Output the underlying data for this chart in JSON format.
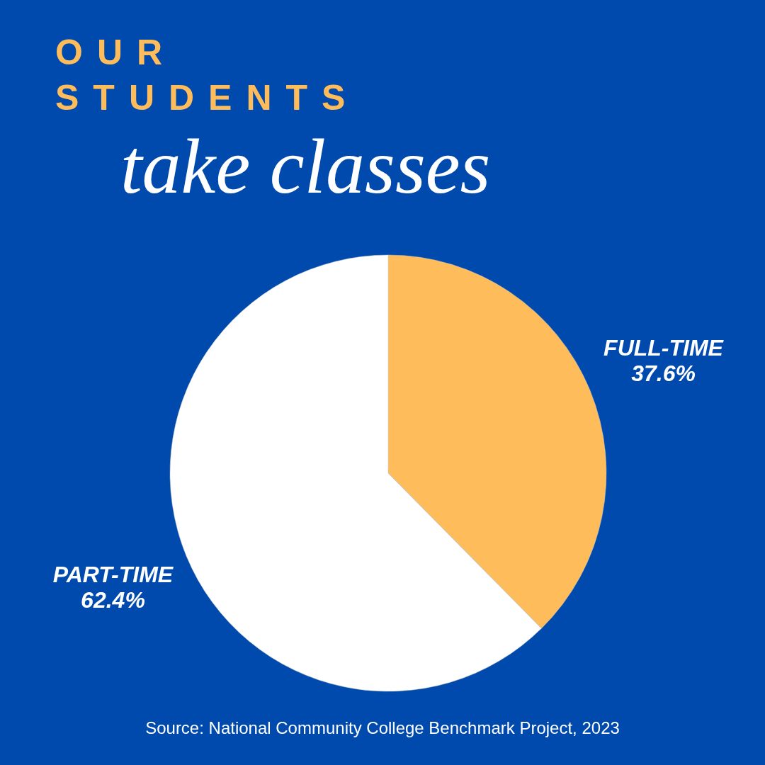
{
  "chart_data": {
    "type": "pie",
    "title": "OUR STUDENTS",
    "subtitle": "take classes",
    "categories": [
      "FULL-TIME",
      "PART-TIME"
    ],
    "values": [
      37.6,
      62.4
    ],
    "colors": [
      "#ffbc5a",
      "#ffffff"
    ],
    "value_labels": [
      "37.6%",
      "62.4%"
    ],
    "annotations": [
      "Source: National Community College Benchmark Project, 2023"
    ]
  }
}
